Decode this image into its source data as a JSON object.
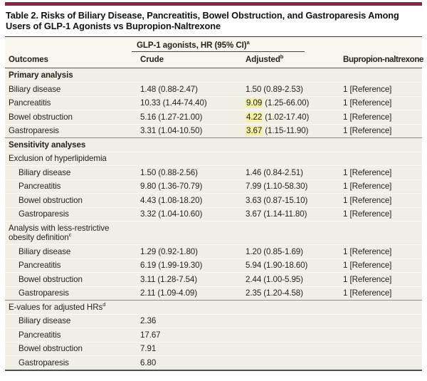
{
  "title": "Table 2. Risks of Biliary Disease, Pancreatitis, Bowel Obstruction, and Gastroparesis Among Users of GLP-1 Agonists vs Bupropion-Naltrexone",
  "colors": {
    "accent_bar": "#8c2147",
    "highlight": "#f2efa2",
    "row_background": "#f1efe4",
    "header_background": "#f7f5ee"
  },
  "header": {
    "spanner": {
      "label": "GLP-1 agonists, HR (95% CI)",
      "sup": "a"
    },
    "columns": [
      {
        "label": "Outcomes",
        "sup": ""
      },
      {
        "label": "Crude",
        "sup": ""
      },
      {
        "label": "Adjusted",
        "sup": "b"
      },
      {
        "label": "Bupropion-naltrexone",
        "sup": ""
      }
    ]
  },
  "table": {
    "rows": [
      {
        "type": "section",
        "label": "Primary analysis",
        "sup": "",
        "bold": true,
        "dark_line": false
      },
      {
        "type": "data",
        "indent": false,
        "outcome": "Biliary disease",
        "crude": "1.48 (0.88-2.47)",
        "adj_hr": "1.50",
        "adj_ci": "(0.89-2.53)",
        "highlight": false,
        "ref": "1 [Reference]"
      },
      {
        "type": "data",
        "indent": false,
        "outcome": "Pancreatitis",
        "crude": "10.33 (1.44-74.40)",
        "adj_hr": "9.09",
        "adj_ci": "(1.25-66.00)",
        "highlight": true,
        "ref": "1 [Reference]"
      },
      {
        "type": "data",
        "indent": false,
        "outcome": "Bowel obstruction",
        "crude": "5.16 (1.27-21.00)",
        "adj_hr": "4.22",
        "adj_ci": "(1.02-17.40)",
        "highlight": true,
        "ref": "1 [Reference]"
      },
      {
        "type": "data",
        "indent": false,
        "outcome": "Gastroparesis",
        "crude": "3.31 (1.04-10.50)",
        "adj_hr": "3.67",
        "adj_ci": "(1.15-11.90)",
        "highlight": true,
        "ref": "1 [Reference]"
      },
      {
        "type": "section",
        "label": "Sensitivity analyses",
        "sup": "",
        "bold": true,
        "dark_line": true
      },
      {
        "type": "section",
        "label": "Exclusion of hyperlipidemia",
        "sup": "",
        "bold": false,
        "dark_line": false
      },
      {
        "type": "data",
        "indent": true,
        "outcome": "Biliary disease",
        "crude": "1.50 (0.88-2.56)",
        "adj_hr": "1.46",
        "adj_ci": "(0.84-2.51)",
        "highlight": false,
        "ref": "1 [Reference]"
      },
      {
        "type": "data",
        "indent": true,
        "outcome": "Pancreatitis",
        "crude": "9.80 (1.36-70.79)",
        "adj_hr": "7.99",
        "adj_ci": "(1.10-58.30)",
        "highlight": false,
        "ref": "1 [Reference]"
      },
      {
        "type": "data",
        "indent": true,
        "outcome": "Bowel obstruction",
        "crude": "4.43 (1.08-18.20)",
        "adj_hr": "3.63",
        "adj_ci": "(0.87-15.10)",
        "highlight": false,
        "ref": "1 [Reference]"
      },
      {
        "type": "data",
        "indent": true,
        "outcome": "Gastroparesis",
        "crude": "3.32 (1.04-10.60)",
        "adj_hr": "3.67",
        "adj_ci": "(1.14-11.80)",
        "highlight": false,
        "ref": "1 [Reference]"
      },
      {
        "type": "section",
        "label": "Analysis with less-restrictive obesity definition",
        "sup": "c",
        "bold": false,
        "dark_line": false
      },
      {
        "type": "data",
        "indent": true,
        "outcome": "Biliary disease",
        "crude": "1.29 (0.92-1.80)",
        "adj_hr": "1.20",
        "adj_ci": "(0.85-1.69)",
        "highlight": false,
        "ref": "1 [Reference]"
      },
      {
        "type": "data",
        "indent": true,
        "outcome": "Pancreatitis",
        "crude": "6.19 (1.99-19.30)",
        "adj_hr": "5.94",
        "adj_ci": "(1.90-18.60)",
        "highlight": false,
        "ref": "1 [Reference]"
      },
      {
        "type": "data",
        "indent": true,
        "outcome": "Bowel obstruction",
        "crude": "3.11 (1.28-7.54)",
        "adj_hr": "2.44",
        "adj_ci": "(1.00-5.95)",
        "highlight": false,
        "ref": "1 [Reference]"
      },
      {
        "type": "data",
        "indent": true,
        "outcome": "Gastroparesis",
        "crude": "2.11 (1.09-4.09)",
        "adj_hr": "2.35",
        "adj_ci": "(1.20-4.58)",
        "highlight": false,
        "ref": "1 [Reference]"
      },
      {
        "type": "section",
        "label": "E-values for adjusted HRs",
        "sup": "d",
        "bold": false,
        "dark_line": true
      },
      {
        "type": "data",
        "indent": true,
        "outcome": "Biliary disease",
        "crude": "2.36",
        "adj_hr": "",
        "adj_ci": "",
        "highlight": false,
        "ref": ""
      },
      {
        "type": "data",
        "indent": true,
        "outcome": "Pancreatitis",
        "crude": "17.67",
        "adj_hr": "",
        "adj_ci": "",
        "highlight": false,
        "ref": ""
      },
      {
        "type": "data",
        "indent": true,
        "outcome": "Bowel obstruction",
        "crude": "7.91",
        "adj_hr": "",
        "adj_ci": "",
        "highlight": false,
        "ref": ""
      },
      {
        "type": "data",
        "indent": true,
        "outcome": "Gastroparesis",
        "crude": "6.80",
        "adj_hr": "",
        "adj_ci": "",
        "highlight": false,
        "ref": ""
      }
    ]
  }
}
